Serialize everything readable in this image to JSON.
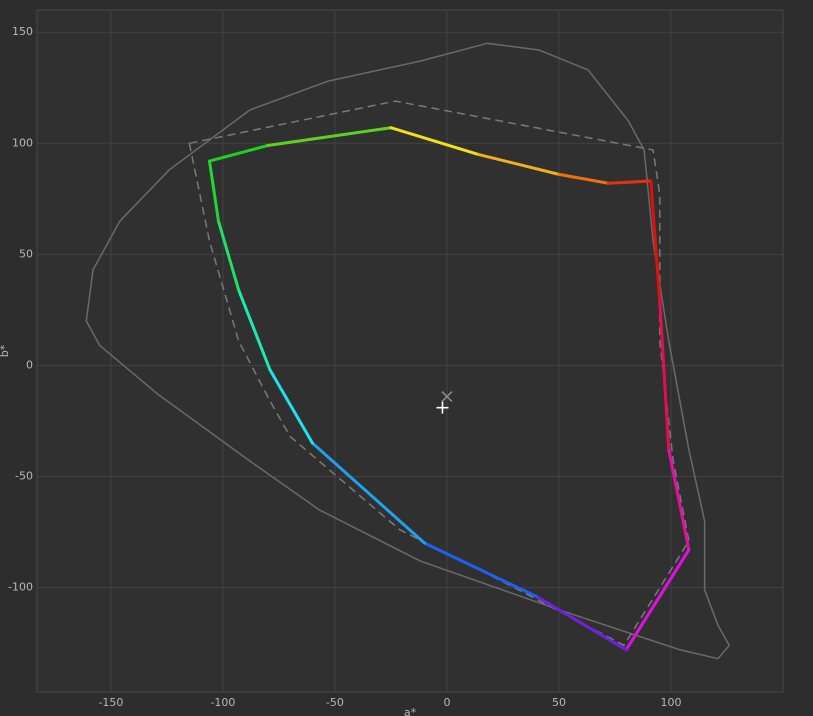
{
  "chart_data": {
    "type": "line",
    "x_label": "a*",
    "y_label": "b*",
    "xlim": [
      -183,
      150
    ],
    "ylim": [
      -147,
      160
    ],
    "xticks": [
      -150,
      -100,
      -50,
      0,
      50,
      100
    ],
    "yticks": [
      -100,
      -50,
      0,
      50,
      100,
      150
    ],
    "grid": true,
    "series": [
      {
        "color": "#6a6a6a",
        "dash": "solid",
        "closed": true,
        "x": [
          18,
          -12,
          -53,
          -88,
          -124,
          -146,
          -158,
          -161,
          -155,
          -129,
          -88,
          -57,
          -12,
          50,
          104,
          121,
          126,
          121,
          115,
          115,
          108,
          99,
          92,
          88,
          81,
          63,
          41
        ],
        "values": [
          145,
          137,
          128,
          115,
          88,
          65,
          43,
          20,
          9,
          -13,
          -43,
          -65,
          -88,
          -110,
          -128,
          -132,
          -126,
          -117,
          -101,
          -70,
          -38,
          11,
          56,
          97,
          110,
          133,
          142
        ]
      },
      {
        "color": "#7a7a7a",
        "dash": "dashed",
        "closed": true,
        "x": [
          -115,
          -23,
          92,
          95,
          95,
          101,
          108,
          79,
          32,
          -21,
          -70,
          -79,
          -93,
          -106
        ],
        "values": [
          100,
          119,
          97,
          77,
          11,
          -43,
          -79,
          -126,
          -101,
          -74,
          -32,
          -16,
          11,
          56
        ]
      },
      {
        "dash": "solid",
        "closed": true,
        "width": 3,
        "x": [
          -106,
          -80,
          -25,
          14,
          50,
          72,
          91,
          95,
          99,
          108,
          80,
          40,
          -10,
          -60,
          -79,
          -93,
          -102
        ],
        "values": [
          92,
          99,
          107,
          95,
          86,
          82,
          83,
          29,
          -38,
          -83,
          -128,
          -104,
          -80,
          -35,
          -2,
          34,
          65
        ],
        "colors": [
          "#20d020",
          "#60d020",
          "#f0e020",
          "#f0b020",
          "#f07010",
          "#e83010",
          "#e01010",
          "#e01050",
          "#e010a0",
          "#e010e0",
          "#7020e0",
          "#2060f0",
          "#20a0f0",
          "#20e0f0",
          "#20e8b0",
          "#20e060",
          "#20d830"
        ]
      }
    ],
    "markers": [
      {
        "symbol": "x",
        "color": "#8a8a8a",
        "x": 0,
        "y": -14
      },
      {
        "symbol": "+",
        "color": "#ffffff",
        "x": -2,
        "y": -19
      }
    ]
  }
}
